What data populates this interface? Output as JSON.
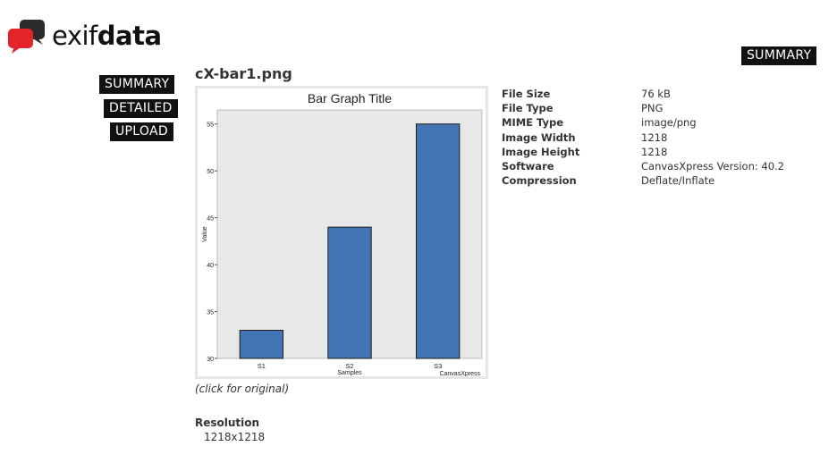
{
  "logo": {
    "text_light": "exif",
    "text_bold": "data"
  },
  "nav": {
    "summary": "SUMMARY",
    "detailed": "DETAILED",
    "upload": "UPLOAD"
  },
  "header": {
    "summary": "SUMMARY"
  },
  "file": {
    "name": "cX-bar1.png",
    "caption": "(click for original)"
  },
  "metadata": [
    {
      "key": "File Size",
      "value": "76 kB"
    },
    {
      "key": "File Type",
      "value": "PNG"
    },
    {
      "key": "MIME Type",
      "value": "image/png"
    },
    {
      "key": "Image Width",
      "value": "1218"
    },
    {
      "key": "Image Height",
      "value": "1218"
    },
    {
      "key": "Software",
      "value": "CanvasXpress Version: 40.2"
    },
    {
      "key": "Compression",
      "value": "Deflate/Inflate"
    }
  ],
  "resolution": {
    "label": "Resolution",
    "value": "1218x1218"
  },
  "colors": {
    "bar": "#4374b3",
    "plot_bg": "#e8e8e8",
    "logo_red": "#e3242b",
    "logo_dark": "#2a2a2a"
  },
  "chart_data": {
    "type": "bar",
    "title": "Bar Graph Title",
    "xlabel": "Samples",
    "ylabel": "Value",
    "categories": [
      "S1",
      "S2",
      "S3"
    ],
    "values": [
      33,
      44,
      55
    ],
    "ylim": [
      30,
      56.5
    ],
    "yticks": [
      30,
      35,
      40,
      45,
      50,
      55
    ],
    "watermark": "CanvasXpress",
    "grid": false
  }
}
